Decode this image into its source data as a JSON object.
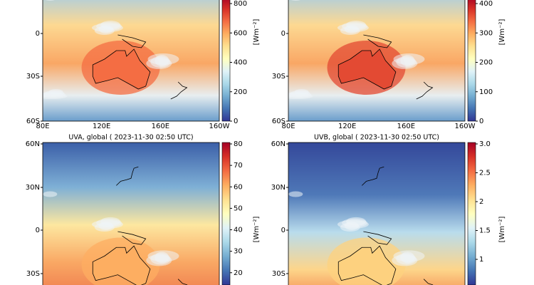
{
  "panels": [
    {
      "lat_labels": [
        "0",
        "30S",
        "60S"
      ],
      "lon_labels": [
        "80E",
        "120E",
        "160E",
        "160W"
      ],
      "colorbar": {
        "lim": [
          0,
          800
        ],
        "ticks": [
          0,
          200,
          400,
          600,
          800
        ],
        "unit": "[Wm⁻²]"
      }
    },
    {
      "lat_labels": [
        "0",
        "30S",
        "60S"
      ],
      "lon_labels": [
        "80E",
        "120E",
        "160E",
        "160W"
      ],
      "colorbar": {
        "lim": [
          0,
          400
        ],
        "ticks": [
          0,
          100,
          200,
          300,
          400
        ],
        "unit": "[Wm⁻²]"
      }
    },
    {
      "title": "UVA, global ( 2023-11-30 02:50 UTC)",
      "lat_labels": [
        "60N",
        "30N",
        "0",
        "30S"
      ],
      "colorbar": {
        "lim": [
          0,
          80
        ],
        "ticks": [
          20,
          30,
          40,
          50,
          60,
          70,
          80
        ],
        "unit": "[Wm⁻²]"
      }
    },
    {
      "title": "UVB, global ( 2023-11-30 02:50 UTC)",
      "lat_labels": [
        "60N",
        "30N",
        "0",
        "30S"
      ],
      "colorbar": {
        "lim": [
          0,
          3.0
        ],
        "ticks": [
          1.0,
          1.5,
          2.0,
          2.5,
          {
            "value": 3.0,
            "label": "3.0"
          }
        ],
        "unit": "[Wm⁻²]"
      }
    }
  ]
}
